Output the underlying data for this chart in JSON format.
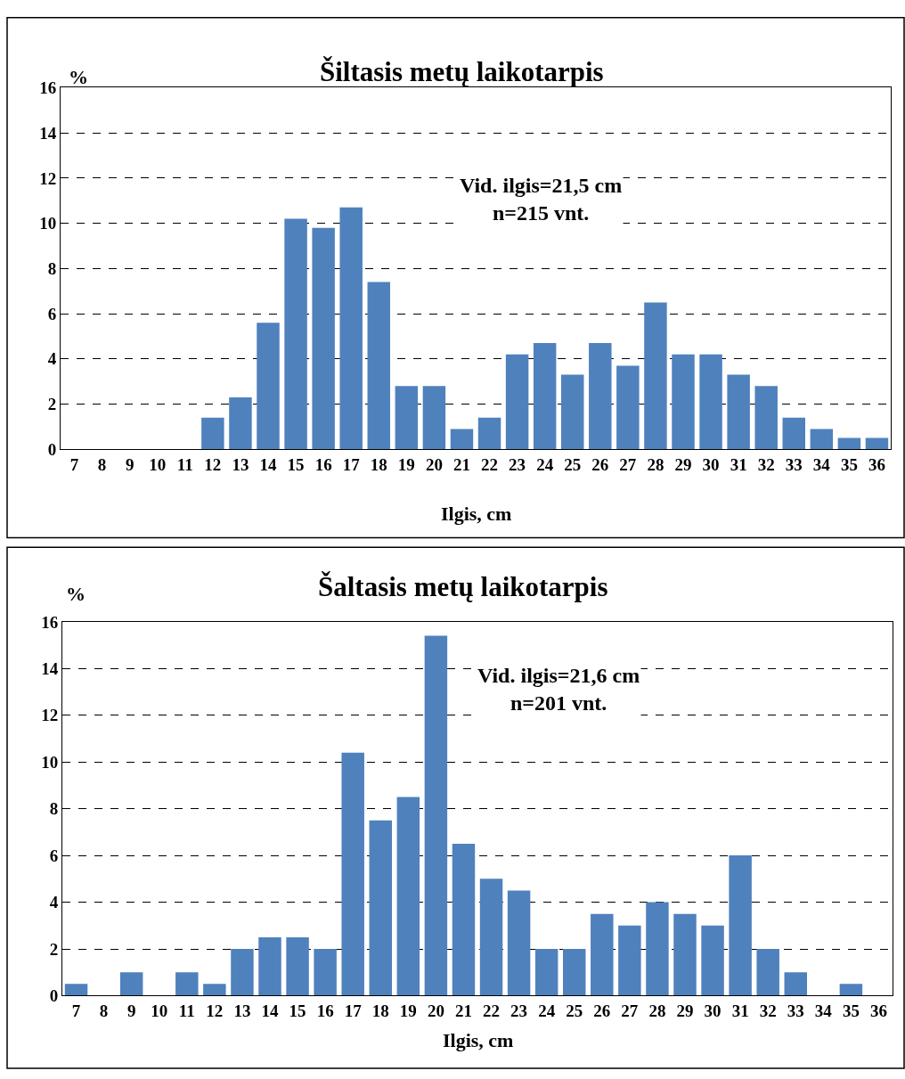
{
  "chart_data": [
    {
      "type": "bar",
      "title": "Šiltasis metų laikotarpis",
      "xlabel": "Ilgis, cm",
      "ylabel": "%",
      "annotations": [
        "Vid. ilgis=21,5 cm\nn=215 vnt."
      ],
      "categories": [
        "7",
        "8",
        "9",
        "10",
        "11",
        "12",
        "13",
        "14",
        "15",
        "16",
        "17",
        "18",
        "19",
        "20",
        "21",
        "22",
        "23",
        "24",
        "25",
        "26",
        "27",
        "28",
        "29",
        "30",
        "31",
        "32",
        "33",
        "34",
        "35",
        "36"
      ],
      "values": [
        0,
        0,
        0,
        0,
        0,
        1.4,
        2.3,
        5.6,
        10.2,
        9.8,
        10.7,
        7.4,
        2.8,
        2.8,
        0.9,
        1.4,
        4.2,
        4.7,
        3.3,
        4.7,
        3.7,
        6.5,
        4.2,
        4.2,
        3.3,
        2.8,
        1.4,
        0.9,
        0.5,
        0.5
      ],
      "color": "#4f81bd",
      "ylim": [
        0,
        16
      ],
      "yticks": [
        0,
        2,
        4,
        6,
        8,
        10,
        12,
        14,
        16
      ],
      "grid": "y"
    },
    {
      "type": "bar",
      "title": "Šaltasis metų laikotarpis",
      "xlabel": "Ilgis, cm",
      "ylabel": "%",
      "annotations": [
        "Vid. ilgis=21,6 cm\nn=201 vnt."
      ],
      "categories": [
        "7",
        "8",
        "9",
        "10",
        "11",
        "12",
        "13",
        "14",
        "15",
        "16",
        "17",
        "18",
        "19",
        "20",
        "21",
        "22",
        "23",
        "24",
        "25",
        "26",
        "27",
        "28",
        "29",
        "30",
        "31",
        "32",
        "33",
        "34",
        "35",
        "36"
      ],
      "values": [
        0.5,
        0,
        1,
        0,
        1,
        0.5,
        2,
        2.5,
        2.5,
        2,
        10.4,
        7.5,
        8.5,
        15.4,
        6.5,
        5,
        4.5,
        2,
        2,
        3.5,
        3,
        4,
        3.5,
        3,
        6,
        2,
        1,
        0,
        0.5,
        0
      ],
      "color": "#4f81bd",
      "ylim": [
        0,
        16
      ],
      "yticks": [
        0,
        2,
        4,
        6,
        8,
        10,
        12,
        14,
        16
      ],
      "grid": "y"
    }
  ]
}
